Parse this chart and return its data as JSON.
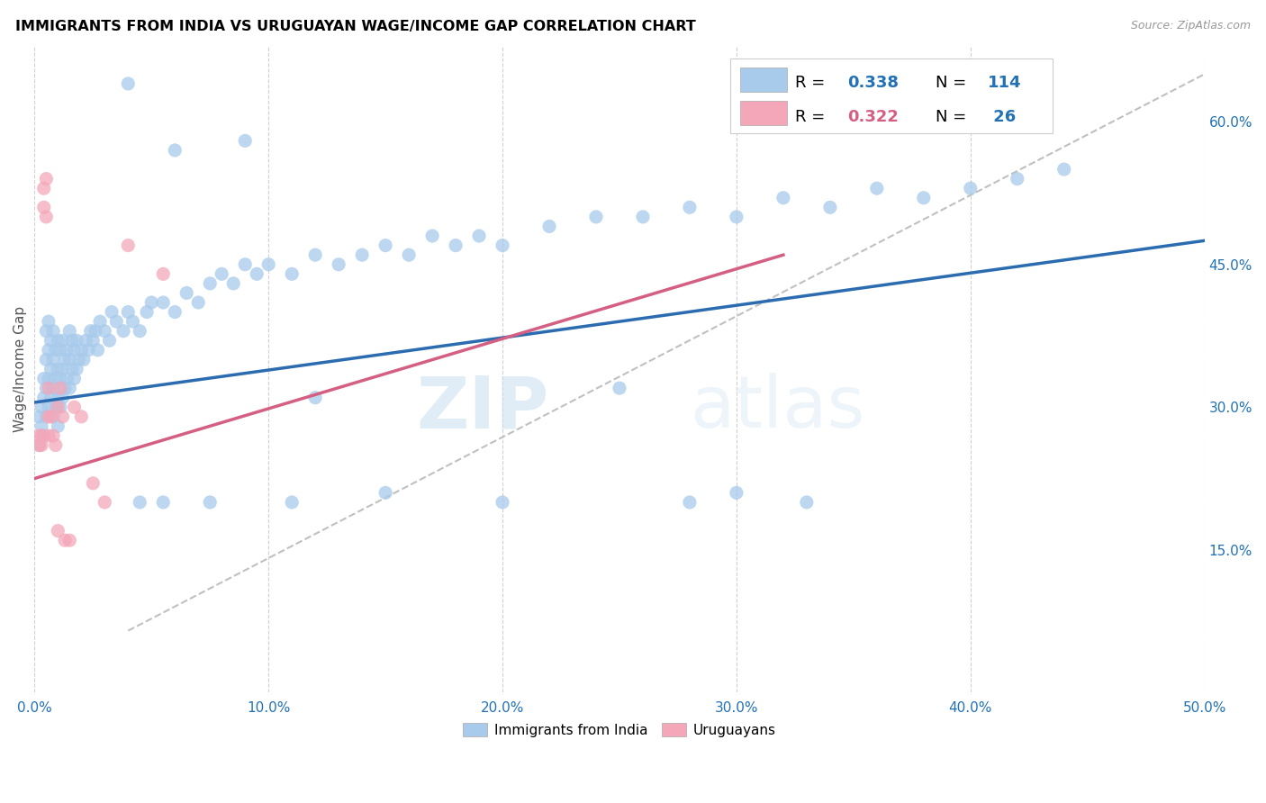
{
  "title": "IMMIGRANTS FROM INDIA VS URUGUAYAN WAGE/INCOME GAP CORRELATION CHART",
  "source": "Source: ZipAtlas.com",
  "ylabel": "Wage/Income Gap",
  "xlim": [
    0.0,
    0.5
  ],
  "ylim": [
    0.0,
    0.68
  ],
  "xticks": [
    0.0,
    0.1,
    0.2,
    0.3,
    0.4,
    0.5
  ],
  "yticks_right": [
    0.15,
    0.3,
    0.45,
    0.6
  ],
  "ytick_right_labels": [
    "15.0%",
    "30.0%",
    "45.0%",
    "60.0%"
  ],
  "xtick_labels": [
    "0.0%",
    "10.0%",
    "20.0%",
    "30.0%",
    "40.0%",
    "50.0%"
  ],
  "legend_label1": "Immigrants from India",
  "legend_label2": "Uruguayans",
  "blue_color": "#a8caeb",
  "pink_color": "#f4a7b9",
  "blue_line_color": "#2b6cb0",
  "pink_line_color": "#d45f82",
  "dashed_line_color": "#c0c0c0",
  "watermark_zip": "ZIP",
  "watermark_atlas": "atlas",
  "blue_scatter_x": [
    0.002,
    0.002,
    0.003,
    0.003,
    0.004,
    0.004,
    0.004,
    0.005,
    0.005,
    0.005,
    0.005,
    0.006,
    0.006,
    0.006,
    0.006,
    0.007,
    0.007,
    0.007,
    0.008,
    0.008,
    0.008,
    0.008,
    0.009,
    0.009,
    0.009,
    0.01,
    0.01,
    0.01,
    0.01,
    0.011,
    0.011,
    0.011,
    0.012,
    0.012,
    0.012,
    0.013,
    0.013,
    0.014,
    0.014,
    0.015,
    0.015,
    0.015,
    0.016,
    0.016,
    0.017,
    0.017,
    0.018,
    0.018,
    0.019,
    0.02,
    0.021,
    0.022,
    0.023,
    0.024,
    0.025,
    0.026,
    0.027,
    0.028,
    0.03,
    0.032,
    0.033,
    0.035,
    0.038,
    0.04,
    0.042,
    0.045,
    0.048,
    0.05,
    0.055,
    0.06,
    0.065,
    0.07,
    0.075,
    0.08,
    0.085,
    0.09,
    0.095,
    0.1,
    0.11,
    0.12,
    0.13,
    0.14,
    0.15,
    0.16,
    0.17,
    0.18,
    0.19,
    0.2,
    0.22,
    0.24,
    0.26,
    0.28,
    0.3,
    0.32,
    0.34,
    0.36,
    0.38,
    0.4,
    0.42,
    0.44,
    0.15,
    0.2,
    0.25,
    0.3,
    0.09,
    0.06,
    0.04,
    0.12,
    0.28,
    0.33,
    0.045,
    0.055,
    0.075,
    0.11
  ],
  "blue_scatter_y": [
    0.26,
    0.29,
    0.28,
    0.3,
    0.27,
    0.31,
    0.33,
    0.29,
    0.32,
    0.35,
    0.38,
    0.3,
    0.33,
    0.36,
    0.39,
    0.31,
    0.34,
    0.37,
    0.29,
    0.32,
    0.35,
    0.38,
    0.3,
    0.33,
    0.36,
    0.28,
    0.31,
    0.34,
    0.37,
    0.3,
    0.33,
    0.36,
    0.31,
    0.34,
    0.37,
    0.32,
    0.35,
    0.33,
    0.36,
    0.32,
    0.35,
    0.38,
    0.34,
    0.37,
    0.33,
    0.36,
    0.34,
    0.37,
    0.35,
    0.36,
    0.35,
    0.37,
    0.36,
    0.38,
    0.37,
    0.38,
    0.36,
    0.39,
    0.38,
    0.37,
    0.4,
    0.39,
    0.38,
    0.4,
    0.39,
    0.38,
    0.4,
    0.41,
    0.41,
    0.4,
    0.42,
    0.41,
    0.43,
    0.44,
    0.43,
    0.45,
    0.44,
    0.45,
    0.44,
    0.46,
    0.45,
    0.46,
    0.47,
    0.46,
    0.48,
    0.47,
    0.48,
    0.47,
    0.49,
    0.5,
    0.5,
    0.51,
    0.5,
    0.52,
    0.51,
    0.53,
    0.52,
    0.53,
    0.54,
    0.55,
    0.21,
    0.2,
    0.32,
    0.21,
    0.58,
    0.57,
    0.64,
    0.31,
    0.2,
    0.2,
    0.2,
    0.2,
    0.2,
    0.2
  ],
  "pink_scatter_x": [
    0.002,
    0.002,
    0.003,
    0.003,
    0.004,
    0.004,
    0.005,
    0.005,
    0.006,
    0.006,
    0.007,
    0.008,
    0.009,
    0.01,
    0.011,
    0.012,
    0.013,
    0.015,
    0.017,
    0.02,
    0.025,
    0.03,
    0.04,
    0.055,
    0.01,
    0.006
  ],
  "pink_scatter_y": [
    0.26,
    0.27,
    0.27,
    0.26,
    0.51,
    0.53,
    0.5,
    0.54,
    0.32,
    0.27,
    0.29,
    0.27,
    0.26,
    0.3,
    0.32,
    0.29,
    0.16,
    0.16,
    0.3,
    0.29,
    0.22,
    0.2,
    0.47,
    0.44,
    0.17,
    0.29
  ],
  "blue_line_x": [
    0.0,
    0.5
  ],
  "blue_line_y": [
    0.305,
    0.475
  ],
  "pink_line_x": [
    0.0,
    0.32
  ],
  "pink_line_y": [
    0.225,
    0.46
  ],
  "dash_line_x": [
    0.04,
    0.5
  ],
  "dash_line_y": [
    0.065,
    0.65
  ]
}
